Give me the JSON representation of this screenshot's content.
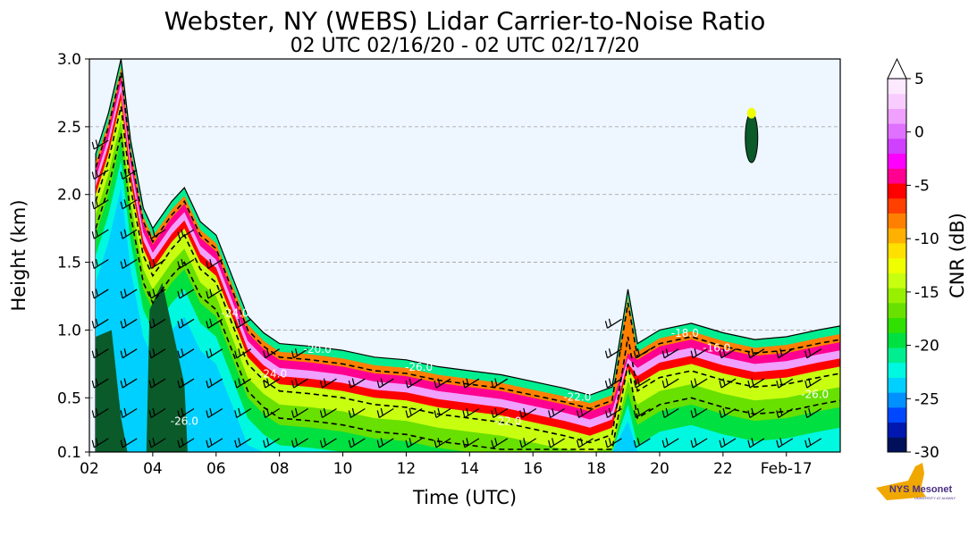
{
  "chart_data": {
    "type": "heatmap",
    "title": "Webster, NY (WEBS) Lidar Carrier-to-Noise Ratio",
    "subtitle": "02 UTC 02/16/20 - 02 UTC 02/17/20",
    "xlabel": "Time (UTC)",
    "ylabel": "Height (km)",
    "x_tick_labels": [
      "02",
      "04",
      "06",
      "08",
      "10",
      "12",
      "14",
      "16",
      "18",
      "20",
      "22",
      "Feb-17"
    ],
    "y_ticks": [
      0.1,
      0.5,
      1.0,
      1.5,
      2.0,
      2.5,
      3.0
    ],
    "y_tick_labels": [
      "0.1",
      "0.5",
      "1.0",
      "1.5",
      "2.0",
      "2.5",
      "3.0"
    ],
    "xlim_hours": [
      2,
      25.7
    ],
    "ylim": [
      0.1,
      3.0
    ],
    "grid": "horizontal dashed",
    "colorbar": {
      "label": "CNR (dB)",
      "min": -30,
      "max": 5,
      "ticks": [
        5,
        0,
        -5,
        -10,
        -15,
        -20,
        -25,
        -30
      ],
      "tick_labels": [
        "5",
        "0",
        "-5",
        "-10",
        "-15",
        "-20",
        "-25",
        "-30"
      ],
      "extend": "max",
      "colors": [
        "#00105a",
        "#0018b0",
        "#0048ff",
        "#0090ff",
        "#00d0ff",
        "#00f8e0",
        "#00ee90",
        "#00e040",
        "#30e000",
        "#68e000",
        "#98f000",
        "#c8ff10",
        "#f0ff00",
        "#ffe000",
        "#ffb000",
        "#ff8000",
        "#ff4000",
        "#ff0000",
        "#ff0090",
        "#ff00ff",
        "#d040ff",
        "#e070ff",
        "#f0a0ff",
        "#f8ccff",
        "#fce8ff"
      ]
    },
    "contour_labels": [
      "-20.0",
      "-26.0",
      "-24.0",
      "-22.0",
      "-16.0",
      "-18.0"
    ],
    "background_color": "#eef6ff",
    "series": [
      {
        "values": [
          {
            "t": 2.2,
            "top": 2.3
          },
          {
            "t": 2.6,
            "top": 2.6
          },
          {
            "t": 3.0,
            "top": 3.0
          },
          {
            "t": 3.3,
            "top": 2.4
          },
          {
            "t": 3.7,
            "top": 1.9
          },
          {
            "t": 4.0,
            "top": 1.75
          },
          {
            "t": 4.6,
            "top": 1.95
          },
          {
            "t": 5.0,
            "top": 2.05
          },
          {
            "t": 5.5,
            "top": 1.8
          },
          {
            "t": 6.0,
            "top": 1.7
          },
          {
            "t": 6.5,
            "top": 1.4
          },
          {
            "t": 7.0,
            "top": 1.1
          },
          {
            "t": 7.5,
            "top": 0.98
          },
          {
            "t": 8.0,
            "top": 0.9
          },
          {
            "t": 9.0,
            "top": 0.88
          },
          {
            "t": 10.0,
            "top": 0.85
          },
          {
            "t": 11.0,
            "top": 0.8
          },
          {
            "t": 12.0,
            "top": 0.78
          },
          {
            "t": 13.0,
            "top": 0.73
          },
          {
            "t": 14.0,
            "top": 0.7
          },
          {
            "t": 15.0,
            "top": 0.67
          },
          {
            "t": 16.0,
            "top": 0.62
          },
          {
            "t": 17.0,
            "top": 0.57
          },
          {
            "t": 17.8,
            "top": 0.52
          },
          {
            "t": 18.5,
            "top": 0.58
          },
          {
            "t": 19.0,
            "top": 1.3
          },
          {
            "t": 19.3,
            "top": 0.9
          },
          {
            "t": 20.0,
            "top": 1.0
          },
          {
            "t": 21.0,
            "top": 1.05
          },
          {
            "t": 22.0,
            "top": 0.98
          },
          {
            "t": 23.0,
            "top": 0.93
          },
          {
            "t": 24.0,
            "top": 0.95
          },
          {
            "t": 25.0,
            "top": 1.0
          },
          {
            "t": 25.7,
            "top": 1.03
          }
        ]
      }
    ]
  },
  "logo": {
    "text": "NYS Mesonet",
    "subtext": "UNIVERSITY AT ALBANY"
  }
}
